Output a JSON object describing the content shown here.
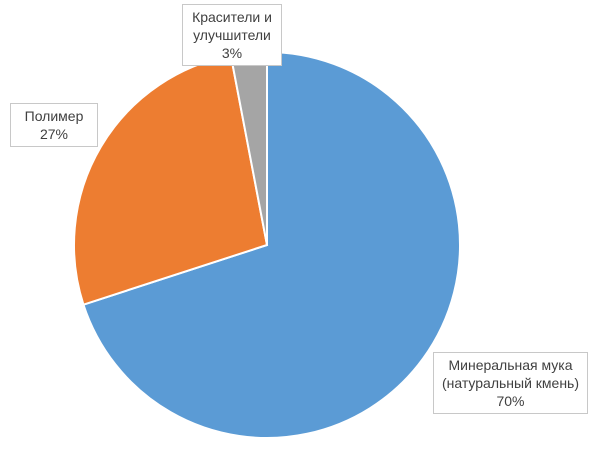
{
  "chart_data": {
    "type": "pie",
    "categories": [
      "Минеральная мука (натуральный кмень)",
      "Полимер",
      "Красители и улучшители"
    ],
    "values": [
      70,
      27,
      3
    ],
    "value_labels": [
      "70%",
      "27%",
      "3%"
    ],
    "colors": [
      "#5b9bd5",
      "#ed7d31",
      "#a5a5a5"
    ]
  }
}
